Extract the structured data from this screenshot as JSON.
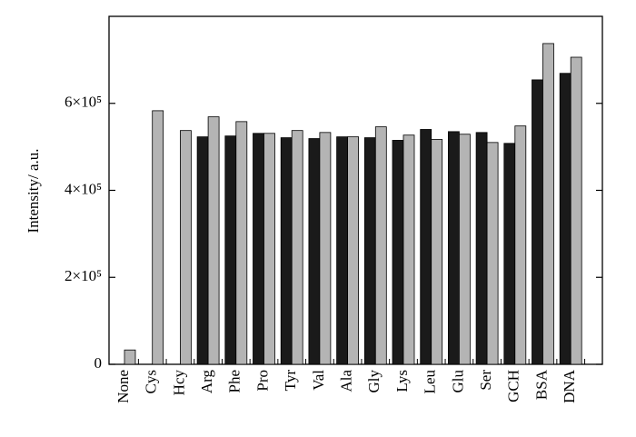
{
  "chart_data": {
    "type": "bar",
    "y_label": "Intensity/ a.u.",
    "categories": [
      "None",
      "Cys",
      "Hcy",
      "Arg",
      "Phe",
      "Pro",
      "Tyr",
      "Val",
      "Ala",
      "Gly",
      "Lys",
      "Leu",
      "Glu",
      "Ser",
      "GCH",
      "BSA",
      "DNA"
    ],
    "series": [
      {
        "color": "#1a1a1a",
        "values": [
          null,
          null,
          null,
          523000,
          525000,
          531000,
          521000,
          519000,
          523000,
          521000,
          515000,
          540000,
          535000,
          533000,
          508000,
          654000,
          669000
        ]
      },
      {
        "color": "#b4b4b4",
        "values": [
          33000,
          583000,
          537500,
          569000,
          558000,
          531000,
          537500,
          533000,
          523000,
          546000,
          527000,
          517000,
          529000,
          510000,
          548000,
          737500,
          706000
        ]
      }
    ],
    "ylim": [
      0,
      800000
    ],
    "yticks": [
      0,
      {
        "value": 200000,
        "label": "2×10⁵"
      },
      {
        "value": 400000,
        "label": "4×10⁵"
      },
      {
        "value": 600000,
        "label": "6×10⁵"
      }
    ]
  }
}
